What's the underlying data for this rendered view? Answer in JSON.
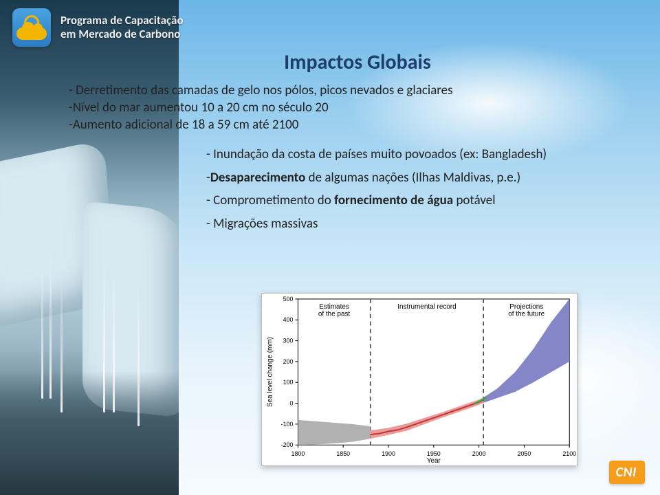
{
  "header": {
    "program_line1": "Programa de Capacitação",
    "program_line2": "em Mercado de Carbono"
  },
  "title": "Impactos Globais",
  "body": {
    "line1": "- Derretimento das camadas de gelo nos pólos, picos nevados e glaciares",
    "line2_html": "-Nível do mar aumentou 10 a 20 cm no século 20",
    "line3_html": "-Aumento adicional de 18 a 59 cm até 2100"
  },
  "sub": {
    "s1": "- Inundação da costa de países muito povoados (ex: Bangladesh)",
    "s2_a": "-",
    "s2_b": "Desaparecimento",
    "s2_c": " de algumas nações (Ilhas Maldivas, p.e.)",
    "s3_a": "- Comprometimento do ",
    "s3_b": "fornecimento de água",
    "s3_c": " potável",
    "s4": "- Migrações massivas"
  },
  "footer": {
    "cni": "CNI"
  },
  "chart": {
    "type": "line-with-uncertainty",
    "background_color": "#ffffff",
    "border_color": "#bbbbbb",
    "axis_color": "#000000",
    "font_family": "Arial",
    "title_fontsize": 10,
    "tick_fontsize": 9,
    "ylabel": "Sea level change (mm)",
    "xlabel": "Year",
    "xlim": [
      1800,
      2100
    ],
    "ylim": [
      -200,
      500
    ],
    "x_ticks": [
      1800,
      1850,
      1900,
      1950,
      2000,
      2050,
      2100
    ],
    "y_ticks": [
      -200,
      -100,
      0,
      100,
      200,
      300,
      400,
      500
    ],
    "sections": [
      {
        "label": "Estimates\nof the past",
        "x_start": 1800,
        "x_end": 1880
      },
      {
        "label": "Instrumental record",
        "x_start": 1880,
        "x_end": 2005
      },
      {
        "label": "Projections\nof the future",
        "x_start": 2005,
        "x_end": 2100
      }
    ],
    "section_divider_color": "#444444",
    "section_divider_dash": "6,5",
    "past_band": {
      "color": "#a9a9a9",
      "points_upper": [
        [
          1800,
          -80
        ],
        [
          1830,
          -90
        ],
        [
          1860,
          -100
        ],
        [
          1880,
          -110
        ]
      ],
      "points_lower": [
        [
          1800,
          -200
        ],
        [
          1830,
          -195
        ],
        [
          1860,
          -185
        ],
        [
          1880,
          -170
        ]
      ]
    },
    "instrumental": {
      "band_color": "#e58b8b",
      "line_color": "#c8322f",
      "line_width": 2,
      "points": [
        [
          1880,
          -150
        ],
        [
          1890,
          -145
        ],
        [
          1900,
          -135
        ],
        [
          1910,
          -128
        ],
        [
          1920,
          -115
        ],
        [
          1930,
          -100
        ],
        [
          1940,
          -85
        ],
        [
          1950,
          -70
        ],
        [
          1960,
          -55
        ],
        [
          1970,
          -40
        ],
        [
          1980,
          -25
        ],
        [
          1990,
          -10
        ],
        [
          2000,
          5
        ],
        [
          2005,
          15
        ]
      ],
      "band_upper": [
        [
          1880,
          -130
        ],
        [
          1900,
          -118
        ],
        [
          1920,
          -98
        ],
        [
          1940,
          -70
        ],
        [
          1960,
          -42
        ],
        [
          1980,
          -12
        ],
        [
          2000,
          18
        ],
        [
          2005,
          28
        ]
      ],
      "band_lower": [
        [
          1880,
          -170
        ],
        [
          1900,
          -152
        ],
        [
          1920,
          -132
        ],
        [
          1940,
          -100
        ],
        [
          1960,
          -68
        ],
        [
          1980,
          -38
        ],
        [
          2000,
          -8
        ],
        [
          2005,
          2
        ]
      ]
    },
    "recent_overlay": {
      "color": "#2fa83a",
      "line_width": 2.5,
      "points": [
        [
          1995,
          -2
        ],
        [
          2000,
          8
        ],
        [
          2005,
          20
        ],
        [
          2008,
          28
        ]
      ]
    },
    "projection": {
      "fan_color": "#7d7fc4",
      "upper": [
        [
          2005,
          28
        ],
        [
          2020,
          70
        ],
        [
          2040,
          150
        ],
        [
          2060,
          260
        ],
        [
          2080,
          390
        ],
        [
          2100,
          500
        ]
      ],
      "lower": [
        [
          2005,
          2
        ],
        [
          2020,
          25
        ],
        [
          2040,
          55
        ],
        [
          2060,
          100
        ],
        [
          2080,
          150
        ],
        [
          2100,
          200
        ]
      ]
    }
  }
}
